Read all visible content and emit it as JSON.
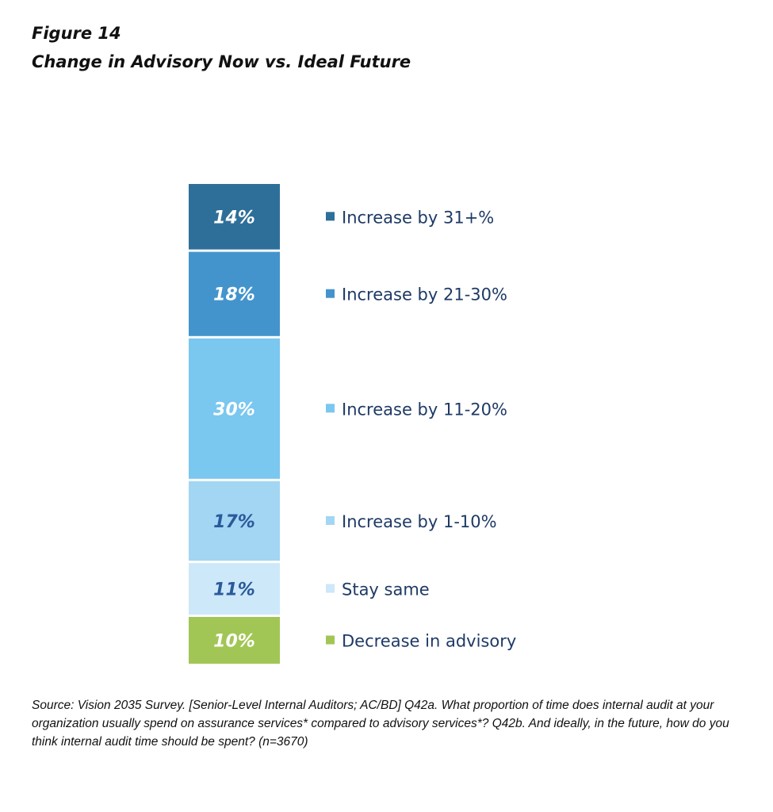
{
  "figure_label": "Figure 14",
  "title": "Change in Advisory Now vs. Ideal Future",
  "source": "Source: Vision 2035 Survey. [Senior-Level Internal Auditors; AC/BD] Q42a. What proportion of time does internal audit at your organization usually spend on assurance services* compared to advisory services*? Q42b. And ideally, in the future, how do you think internal audit time should be spent? (n=3670)",
  "chart_data": {
    "type": "bar",
    "stacked": true,
    "orientation": "vertical",
    "legend_placement": "right",
    "grid": false,
    "categories": [
      "Increase by 31+%",
      "Increase by 21-30%",
      "Increase by 11-20%",
      "Increase by 1-10%",
      "Stay same",
      "Decrease in advisory"
    ],
    "values": [
      14,
      18,
      30,
      17,
      11,
      10
    ],
    "labels": [
      "14%",
      "18%",
      "30%",
      "17%",
      "11%",
      "10%"
    ],
    "colors": [
      "#2e6f9a",
      "#4394cd",
      "#7ac7ef",
      "#a2d6f3",
      "#cde8f9",
      "#a2c655"
    ],
    "label_colors": [
      "#ffffff",
      "#ffffff",
      "#ffffff",
      "#2a5a9a",
      "#2a5a9a",
      "#ffffff"
    ],
    "legend_text_color": "#1e3a66"
  }
}
